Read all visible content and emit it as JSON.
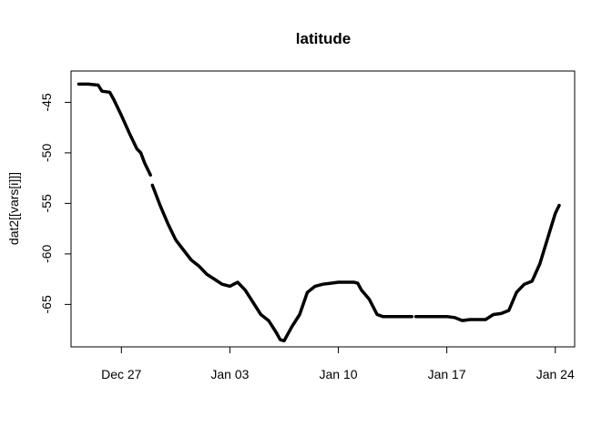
{
  "chart_data": {
    "type": "line",
    "title": "latitude",
    "xlabel": "",
    "ylabel": "dat2[[vars[i]]]",
    "x_unit": "date",
    "x_ticks": [
      {
        "date": "2019-12-27",
        "label": "Dec 27"
      },
      {
        "date": "2020-01-03",
        "label": "Jan 03"
      },
      {
        "date": "2020-01-10",
        "label": "Jan 10"
      },
      {
        "date": "2020-01-17",
        "label": "Jan 17"
      },
      {
        "date": "2020-01-24",
        "label": "Jan 24"
      }
    ],
    "y_ticks": [
      -45,
      -50,
      -55,
      -60,
      -65
    ],
    "xlim": [
      "2019-12-23 18:00",
      "2020-01-25 06:00"
    ],
    "ylim": [
      -69.2,
      -41.9
    ],
    "grid": false,
    "segments": [
      [
        [
          "2019-12-24 06:00",
          -43.2
        ],
        [
          "2019-12-24 21:00",
          -43.2
        ],
        [
          "2019-12-25 12:00",
          -43.3
        ],
        [
          "2019-12-25 18:00",
          -43.9
        ],
        [
          "2019-12-26 06:00",
          -44.0
        ],
        [
          "2019-12-26 12:00",
          -44.7
        ],
        [
          "2019-12-27 00:00",
          -46.3
        ],
        [
          "2019-12-27 12:00",
          -48.0
        ],
        [
          "2019-12-28 00:00",
          -49.6
        ],
        [
          "2019-12-28 06:00",
          -50.0
        ],
        [
          "2019-12-28 12:00",
          -51.0
        ],
        [
          "2019-12-28 21:00",
          -52.2
        ]
      ],
      [
        [
          "2019-12-29 00:00",
          -53.2
        ],
        [
          "2019-12-29 12:00",
          -55.2
        ],
        [
          "2019-12-30 00:00",
          -57.0
        ],
        [
          "2019-12-30 12:00",
          -58.6
        ],
        [
          "2019-12-31 00:00",
          -59.6
        ],
        [
          "2019-12-31 12:00",
          -60.6
        ],
        [
          "2020-01-01 00:00",
          -61.2
        ],
        [
          "2020-01-01 12:00",
          -62.0
        ],
        [
          "2020-01-02 00:00",
          -62.5
        ],
        [
          "2020-01-02 12:00",
          -63.0
        ],
        [
          "2020-01-03 00:00",
          -63.2
        ],
        [
          "2020-01-03 06:00",
          -63.0
        ],
        [
          "2020-01-03 12:00",
          -62.8
        ],
        [
          "2020-01-04 00:00",
          -63.6
        ],
        [
          "2020-01-04 12:00",
          -64.8
        ],
        [
          "2020-01-05 00:00",
          -66.0
        ],
        [
          "2020-01-05 12:00",
          -66.6
        ],
        [
          "2020-01-06 00:00",
          -67.8
        ],
        [
          "2020-01-06 06:00",
          -68.5
        ],
        [
          "2020-01-06 12:00",
          -68.6
        ],
        [
          "2020-01-07 00:00",
          -67.2
        ],
        [
          "2020-01-07 12:00",
          -66.0
        ],
        [
          "2020-01-08 00:00",
          -63.8
        ],
        [
          "2020-01-08 12:00",
          -63.2
        ],
        [
          "2020-01-09 00:00",
          -63.0
        ],
        [
          "2020-01-09 12:00",
          -62.9
        ],
        [
          "2020-01-10 00:00",
          -62.8
        ],
        [
          "2020-01-10 12:00",
          -62.8
        ],
        [
          "2020-01-11 00:00",
          -62.8
        ],
        [
          "2020-01-11 06:00",
          -62.9
        ],
        [
          "2020-01-11 12:00",
          -63.6
        ],
        [
          "2020-01-12 00:00",
          -64.5
        ],
        [
          "2020-01-12 12:00",
          -66.0
        ],
        [
          "2020-01-12 21:00",
          -66.2
        ],
        [
          "2020-01-13 12:00",
          -66.2
        ],
        [
          "2020-01-14 00:00",
          -66.2
        ],
        [
          "2020-01-14 18:00",
          -66.2
        ]
      ],
      [
        [
          "2020-01-15 00:00",
          -66.2
        ],
        [
          "2020-01-16 00:00",
          -66.2
        ],
        [
          "2020-01-17 00:00",
          -66.2
        ],
        [
          "2020-01-17 12:00",
          -66.3
        ],
        [
          "2020-01-18 00:00",
          -66.6
        ],
        [
          "2020-01-18 12:00",
          -66.5
        ],
        [
          "2020-01-19 00:00",
          -66.5
        ],
        [
          "2020-01-19 12:00",
          -66.5
        ],
        [
          "2020-01-20 00:00",
          -66.0
        ],
        [
          "2020-01-20 12:00",
          -65.9
        ],
        [
          "2020-01-21 00:00",
          -65.6
        ],
        [
          "2020-01-21 12:00",
          -63.8
        ],
        [
          "2020-01-22 00:00",
          -63.0
        ],
        [
          "2020-01-22 12:00",
          -62.7
        ],
        [
          "2020-01-23 00:00",
          -61.0
        ],
        [
          "2020-01-23 12:00",
          -58.5
        ],
        [
          "2020-01-24 00:00",
          -56.0
        ],
        [
          "2020-01-24 06:00",
          -55.2
        ]
      ]
    ]
  }
}
